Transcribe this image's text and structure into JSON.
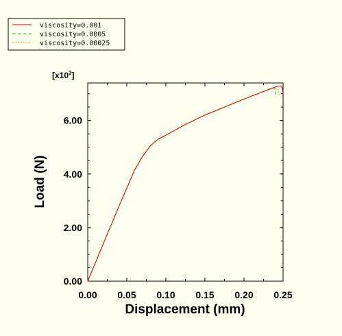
{
  "chart_data": {
    "type": "line",
    "xlabel": "Displacement (mm)",
    "ylabel": "Load (N)",
    "y_multiplier": "[x10",
    "y_multiplier_exp": "3",
    "y_multiplier_close": "]",
    "xlim": [
      0,
      0.25
    ],
    "ylim": [
      0,
      7.4
    ],
    "grid": false,
    "legend_position": "top-left",
    "x_ticks": [
      {
        "value": 0.0,
        "label": "0.00"
      },
      {
        "value": 0.05,
        "label": "0.05"
      },
      {
        "value": 0.1,
        "label": "0.10"
      },
      {
        "value": 0.15,
        "label": "0.15"
      },
      {
        "value": 0.2,
        "label": "0.20"
      },
      {
        "value": 0.25,
        "label": "0.25"
      }
    ],
    "y_ticks": [
      {
        "value": 0.0,
        "label": "0.00"
      },
      {
        "value": 2.0,
        "label": "2.00"
      },
      {
        "value": 4.0,
        "label": "4.00"
      },
      {
        "value": 6.0,
        "label": "6.00"
      }
    ],
    "series": [
      {
        "name": "viscosity=0.001",
        "color": "#cc0000",
        "dash": "solid",
        "points": [
          [
            0,
            0
          ],
          [
            0.02,
            1.4
          ],
          [
            0.04,
            2.8
          ],
          [
            0.06,
            4.15
          ],
          [
            0.07,
            4.65
          ],
          [
            0.08,
            5.05
          ],
          [
            0.09,
            5.3
          ],
          [
            0.1,
            5.45
          ],
          [
            0.125,
            5.85
          ],
          [
            0.15,
            6.2
          ],
          [
            0.175,
            6.5
          ],
          [
            0.2,
            6.8
          ],
          [
            0.225,
            7.08
          ],
          [
            0.24,
            7.25
          ],
          [
            0.247,
            7.3
          ],
          [
            0.249,
            7.22
          ],
          [
            0.25,
            7.0
          ]
        ]
      },
      {
        "name": "viscosity=0.0005",
        "color": "#22bb22",
        "dash": "dashed",
        "points": [
          [
            0,
            0
          ],
          [
            0.02,
            1.4
          ],
          [
            0.04,
            2.8
          ],
          [
            0.06,
            4.15
          ],
          [
            0.07,
            4.65
          ],
          [
            0.08,
            5.05
          ],
          [
            0.09,
            5.3
          ],
          [
            0.1,
            5.45
          ],
          [
            0.125,
            5.85
          ],
          [
            0.15,
            6.2
          ],
          [
            0.175,
            6.5
          ],
          [
            0.2,
            6.8
          ],
          [
            0.225,
            7.08
          ],
          [
            0.236,
            7.22
          ],
          [
            0.24,
            7.18
          ],
          [
            0.241,
            6.9
          ]
        ]
      },
      {
        "name": "viscosity=0.00025",
        "color": "#ff8800",
        "dash": "dotted",
        "points": [
          [
            0,
            0
          ],
          [
            0.02,
            1.4
          ],
          [
            0.04,
            2.8
          ],
          [
            0.06,
            4.15
          ],
          [
            0.07,
            4.65
          ],
          [
            0.08,
            5.05
          ],
          [
            0.09,
            5.3
          ],
          [
            0.1,
            5.45
          ],
          [
            0.125,
            5.85
          ],
          [
            0.15,
            6.2
          ],
          [
            0.175,
            6.5
          ],
          [
            0.2,
            6.8
          ],
          [
            0.225,
            7.08
          ],
          [
            0.238,
            7.22
          ],
          [
            0.243,
            7.2
          ],
          [
            0.245,
            6.95
          ]
        ]
      }
    ]
  }
}
